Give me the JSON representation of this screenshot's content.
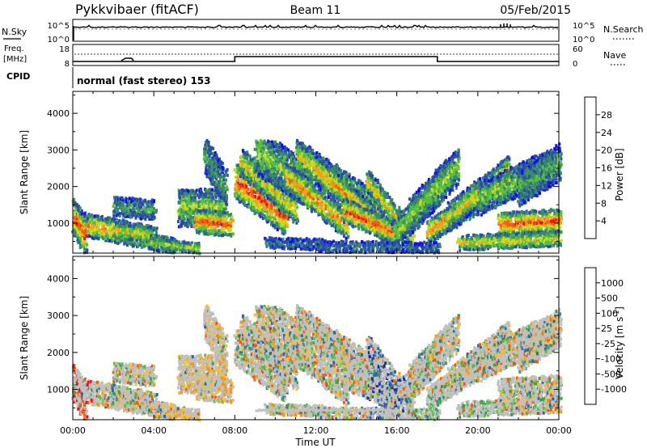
{
  "header": {
    "station": "Pykkvibaer (fitACF)",
    "beam": "Beam 11",
    "date": "05/Feb/2015"
  },
  "panels": {
    "nsky_label": "N.Sky",
    "nsearch_label": "N.Search",
    "nsky_ticks": [
      "10^5",
      "10^0"
    ],
    "nsearch_ticks": [
      "10^5",
      "10^0"
    ],
    "freq_label_top": "Freq.",
    "freq_label_unit": "[MHz]",
    "freq_ticks": [
      "18",
      "8"
    ],
    "nave_label": "Nave",
    "nave_ticks": [
      "60",
      "0"
    ],
    "cpid_label": "CPID",
    "cpid_text": "normal (fast stereo) 153"
  },
  "colors": {
    "power": [
      "#0a10f0",
      "#2a4ea8",
      "#3a8a6a",
      "#55c03e",
      "#c8d81c",
      "#f0a020",
      "#f06010",
      "#e81410"
    ],
    "velocity": [
      "#e81410",
      "#f05a10",
      "#f09820",
      "#f2c22c",
      "#c0c0c0",
      "#50c23c",
      "#3a9a62",
      "#2a66a8",
      "#1a2aa0"
    ]
  },
  "chart_data": [
    {
      "type": "heatmap",
      "name": "power",
      "ylabel": "Slant Range [km]",
      "xlabel": "",
      "yticks": [
        "1000",
        "2000",
        "3000",
        "4000"
      ],
      "ylim": [
        180,
        4600
      ],
      "xlim": [
        0,
        24
      ],
      "colorbar": {
        "label": "Power [dB]",
        "ticks": [
          "4",
          "8",
          "12",
          "16",
          "20",
          "24",
          "28"
        ],
        "range": [
          0,
          32
        ]
      }
    },
    {
      "type": "heatmap",
      "name": "velocity",
      "ylabel": "Slant Range [km]",
      "xlabel": "Time UT",
      "yticks": [
        "1000",
        "2000",
        "3000",
        "4000"
      ],
      "xticks": [
        "00:00",
        "04:00",
        "08:00",
        "12:00",
        "16:00",
        "20:00",
        "00:00"
      ],
      "ylim": [
        180,
        4600
      ],
      "xlim": [
        0,
        24
      ],
      "colorbar": {
        "label": "Velocity [m s",
        "label_sup": "-1",
        "label_end": "]",
        "ticks": [
          "1000",
          "500",
          "100",
          "25",
          "-25",
          "-100",
          "-500",
          "-1000"
        ]
      }
    }
  ]
}
